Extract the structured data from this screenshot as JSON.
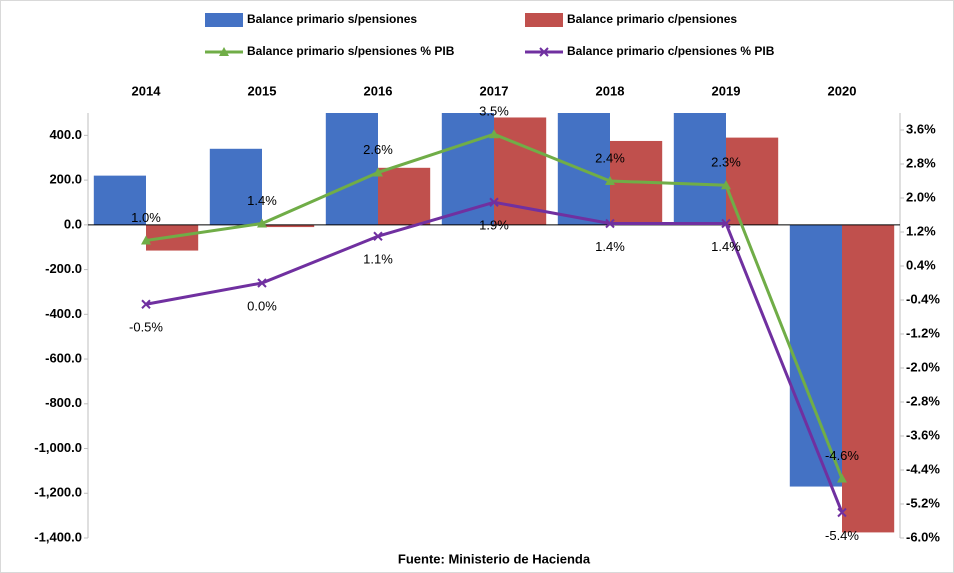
{
  "chart_data": {
    "type": "bar_line",
    "categories": [
      "2014",
      "2015",
      "2016",
      "2017",
      "2018",
      "2019",
      "2020"
    ],
    "series": [
      {
        "name": "Balance primario s/pensiones",
        "color": "#4472c4",
        "type": "bar",
        "values": [
          220,
          340,
          560,
          600,
          580,
          560,
          -1170
        ]
      },
      {
        "name": "Balance primario  c/pensiones",
        "color": "#c0504d",
        "type": "bar",
        "values": [
          -115,
          -10,
          255,
          480,
          375,
          390,
          -1375
        ]
      },
      {
        "name": "Balance primario  s/pensiones % PIB",
        "color": "#70ad47",
        "type": "line",
        "axis": "y2",
        "marker": "triangle",
        "label_pos": "above",
        "values": [
          1.0,
          1.4,
          2.6,
          3.5,
          2.4,
          2.3,
          -4.6
        ],
        "value_labels": [
          "1.0%",
          "1.4%",
          "2.6%",
          "3.5%",
          "2.4%",
          "2.3%",
          "-4.6%"
        ]
      },
      {
        "name": "Balance primario  c/pensiones % PIB",
        "color": "#7030a0",
        "type": "line",
        "axis": "y2",
        "marker": "x",
        "label_pos": "below",
        "values": [
          -0.5,
          0.0,
          1.1,
          1.9,
          1.4,
          1.4,
          -5.4
        ],
        "value_labels": [
          "-0.5%",
          "0.0%",
          "1.1%",
          "1.9%",
          "1.4%",
          "1.4%",
          "-5.4%"
        ]
      }
    ],
    "ylim": [
      -1400,
      500
    ],
    "yticks": [
      {
        "value": 400,
        "label": "400.0"
      },
      {
        "value": 200,
        "label": "200.0"
      },
      {
        "value": 0,
        "label": "0.0"
      },
      {
        "value": -200,
        "label": "-200.0"
      },
      {
        "value": -400,
        "label": "-400.0"
      },
      {
        "value": -600,
        "label": "-600.0"
      },
      {
        "value": -800,
        "label": "-800.0"
      },
      {
        "value": -1000,
        "label": "-1,000.0"
      },
      {
        "value": -1200,
        "label": "-1,200.0"
      },
      {
        "value": -1400,
        "label": "-1,400.0"
      }
    ],
    "y2lim": [
      -6.0,
      4.0
    ],
    "y2ticks": [
      {
        "value": 3.6,
        "label": "3.6%"
      },
      {
        "value": 2.8,
        "label": "2.8%"
      },
      {
        "value": 2.0,
        "label": "2.0%"
      },
      {
        "value": 1.2,
        "label": "1.2%"
      },
      {
        "value": 0.4,
        "label": "0.4%"
      },
      {
        "value": -0.4,
        "label": "-0.4%"
      },
      {
        "value": -1.2,
        "label": "-1.2%"
      },
      {
        "value": -2.0,
        "label": "-2.0%"
      },
      {
        "value": -2.8,
        "label": "-2.8%"
      },
      {
        "value": -3.6,
        "label": "-3.6%"
      },
      {
        "value": -4.4,
        "label": "-4.4%"
      },
      {
        "value": -5.2,
        "label": "-5.2%"
      },
      {
        "value": -6.0,
        "label": "-6.0%"
      }
    ],
    "source": "Fuente: Ministerio de Hacienda"
  }
}
